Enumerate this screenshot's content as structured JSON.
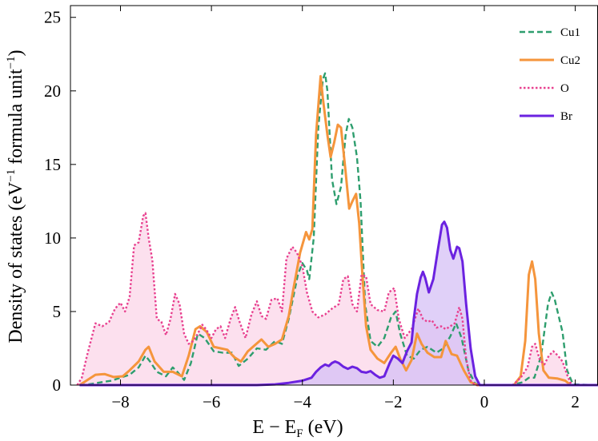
{
  "chart_data": {
    "type": "line",
    "xlabel": "E − E",
    "xlabel_sub": "F",
    "xlabel_unit": " (eV)",
    "ylabel": "Density of states (eV",
    "ylabel_sup": "−1",
    "ylabel_unit": " formula unit",
    "ylabel_unit_sup": "−1",
    "ylabel_close": ")",
    "xlim": [
      -9.1,
      2.5
    ],
    "ylim": [
      0,
      25.8
    ],
    "xticks": [
      -8,
      -6,
      -4,
      -2,
      0,
      2
    ],
    "yticks": [
      0,
      5,
      10,
      15,
      20,
      25
    ],
    "xtick_labels": [
      "−8",
      "−6",
      "−4",
      "−2",
      "0",
      "2"
    ],
    "ytick_labels": [
      "0",
      "5",
      "10",
      "15",
      "20",
      "25"
    ],
    "legend_position": "top-right",
    "series": [
      {
        "name": "Cu1",
        "color": "#2e9e6e",
        "style": "dashed",
        "fill": false,
        "points": [
          [
            -8.9,
            0
          ],
          [
            -8.7,
            0.05
          ],
          [
            -8.5,
            0.15
          ],
          [
            -8.2,
            0.3
          ],
          [
            -8.0,
            0.5
          ],
          [
            -7.8,
            0.7
          ],
          [
            -7.6,
            1.2
          ],
          [
            -7.45,
            2.0
          ],
          [
            -7.35,
            1.6
          ],
          [
            -7.2,
            0.9
          ],
          [
            -7.0,
            0.6
          ],
          [
            -6.85,
            1.2
          ],
          [
            -6.75,
            0.9
          ],
          [
            -6.6,
            0.35
          ],
          [
            -6.45,
            1.5
          ],
          [
            -6.3,
            3.5
          ],
          [
            -6.15,
            3.2
          ],
          [
            -5.95,
            2.3
          ],
          [
            -5.75,
            2.2
          ],
          [
            -5.55,
            2.2
          ],
          [
            -5.4,
            1.3
          ],
          [
            -5.2,
            1.8
          ],
          [
            -5.0,
            2.5
          ],
          [
            -4.8,
            2.4
          ],
          [
            -4.6,
            3.0
          ],
          [
            -4.45,
            2.8
          ],
          [
            -4.3,
            4.5
          ],
          [
            -4.1,
            7.5
          ],
          [
            -4.0,
            8.3
          ],
          [
            -3.9,
            7.8
          ],
          [
            -3.85,
            7.2
          ],
          [
            -3.75,
            10.0
          ],
          [
            -3.65,
            17.5
          ],
          [
            -3.55,
            20.8
          ],
          [
            -3.5,
            21.2
          ],
          [
            -3.45,
            20.0
          ],
          [
            -3.35,
            14.0
          ],
          [
            -3.25,
            12.3
          ],
          [
            -3.15,
            13.5
          ],
          [
            -3.05,
            17.0
          ],
          [
            -2.98,
            18.1
          ],
          [
            -2.9,
            17.5
          ],
          [
            -2.8,
            15.5
          ],
          [
            -2.72,
            12.5
          ],
          [
            -2.62,
            5.5
          ],
          [
            -2.5,
            3.0
          ],
          [
            -2.35,
            2.6
          ],
          [
            -2.2,
            3.2
          ],
          [
            -2.05,
            4.6
          ],
          [
            -1.95,
            5.0
          ],
          [
            -1.85,
            3.5
          ],
          [
            -1.7,
            2.0
          ],
          [
            -1.55,
            1.8
          ],
          [
            -1.4,
            2.4
          ],
          [
            -1.25,
            2.6
          ],
          [
            -1.05,
            2.2
          ],
          [
            -0.9,
            2.5
          ],
          [
            -0.75,
            3.3
          ],
          [
            -0.62,
            4.2
          ],
          [
            -0.5,
            3.2
          ],
          [
            -0.35,
            1.0
          ],
          [
            -0.2,
            0.1
          ],
          [
            -0.05,
            0
          ],
          [
            0.6,
            0
          ],
          [
            0.85,
            0.2
          ],
          [
            0.98,
            0.5
          ],
          [
            1.1,
            0.5
          ],
          [
            1.25,
            2.0
          ],
          [
            1.4,
            5.5
          ],
          [
            1.48,
            6.3
          ],
          [
            1.55,
            5.8
          ],
          [
            1.65,
            4.5
          ],
          [
            1.72,
            3.6
          ],
          [
            1.82,
            1.0
          ],
          [
            1.95,
            0.05
          ],
          [
            2.5,
            0
          ]
        ]
      },
      {
        "name": "Cu2",
        "color": "#f5953c",
        "style": "solid",
        "fill": false,
        "points": [
          [
            -8.9,
            0
          ],
          [
            -8.75,
            0.3
          ],
          [
            -8.55,
            0.7
          ],
          [
            -8.35,
            0.75
          ],
          [
            -8.15,
            0.55
          ],
          [
            -7.95,
            0.6
          ],
          [
            -7.8,
            1.0
          ],
          [
            -7.6,
            1.6
          ],
          [
            -7.45,
            2.4
          ],
          [
            -7.38,
            2.6
          ],
          [
            -7.25,
            1.6
          ],
          [
            -7.05,
            0.9
          ],
          [
            -6.85,
            0.9
          ],
          [
            -6.65,
            0.6
          ],
          [
            -6.5,
            2.0
          ],
          [
            -6.35,
            3.8
          ],
          [
            -6.25,
            4.0
          ],
          [
            -6.1,
            3.6
          ],
          [
            -5.95,
            2.6
          ],
          [
            -5.8,
            2.5
          ],
          [
            -5.65,
            2.4
          ],
          [
            -5.5,
            1.9
          ],
          [
            -5.35,
            1.6
          ],
          [
            -5.2,
            2.3
          ],
          [
            -5.05,
            2.7
          ],
          [
            -4.9,
            3.1
          ],
          [
            -4.75,
            2.6
          ],
          [
            -4.6,
            2.8
          ],
          [
            -4.45,
            3.1
          ],
          [
            -4.3,
            4.7
          ],
          [
            -4.2,
            6.5
          ],
          [
            -4.05,
            9.0
          ],
          [
            -3.92,
            10.4
          ],
          [
            -3.85,
            9.9
          ],
          [
            -3.78,
            10.6
          ],
          [
            -3.7,
            17.0
          ],
          [
            -3.6,
            21.0
          ],
          [
            -3.55,
            19.5
          ],
          [
            -3.45,
            17.0
          ],
          [
            -3.38,
            15.5
          ],
          [
            -3.3,
            16.5
          ],
          [
            -3.22,
            17.7
          ],
          [
            -3.15,
            17.5
          ],
          [
            -3.05,
            14.5
          ],
          [
            -2.97,
            12.0
          ],
          [
            -2.9,
            12.5
          ],
          [
            -2.82,
            13.0
          ],
          [
            -2.75,
            11.0
          ],
          [
            -2.68,
            7.5
          ],
          [
            -2.6,
            4.0
          ],
          [
            -2.5,
            2.4
          ],
          [
            -2.35,
            1.8
          ],
          [
            -2.2,
            1.5
          ],
          [
            -2.05,
            2.2
          ],
          [
            -1.95,
            2.6
          ],
          [
            -1.85,
            1.8
          ],
          [
            -1.72,
            1.0
          ],
          [
            -1.6,
            1.7
          ],
          [
            -1.48,
            3.5
          ],
          [
            -1.38,
            2.8
          ],
          [
            -1.25,
            2.2
          ],
          [
            -1.1,
            1.9
          ],
          [
            -0.95,
            1.9
          ],
          [
            -0.85,
            3.0
          ],
          [
            -0.72,
            2.1
          ],
          [
            -0.6,
            2.0
          ],
          [
            -0.45,
            1.0
          ],
          [
            -0.3,
            0.2
          ],
          [
            -0.15,
            0
          ],
          [
            0.65,
            0
          ],
          [
            0.8,
            0.6
          ],
          [
            0.9,
            3.0
          ],
          [
            0.98,
            7.5
          ],
          [
            1.05,
            8.4
          ],
          [
            1.12,
            7.2
          ],
          [
            1.2,
            3.5
          ],
          [
            1.3,
            1.0
          ],
          [
            1.42,
            0.5
          ],
          [
            1.6,
            0.45
          ],
          [
            1.78,
            0.3
          ],
          [
            1.9,
            0
          ],
          [
            2.5,
            0
          ]
        ]
      },
      {
        "name": "O",
        "color": "#e8408f",
        "style": "dotted",
        "fill": true,
        "fill_color": "#fbd6e8",
        "points": [
          [
            -8.95,
            0
          ],
          [
            -8.85,
            0.5
          ],
          [
            -8.72,
            2.2
          ],
          [
            -8.55,
            4.2
          ],
          [
            -8.4,
            4.0
          ],
          [
            -8.25,
            4.3
          ],
          [
            -8.12,
            5.2
          ],
          [
            -8.0,
            5.6
          ],
          [
            -7.9,
            5.0
          ],
          [
            -7.8,
            6.0
          ],
          [
            -7.7,
            9.5
          ],
          [
            -7.6,
            9.7
          ],
          [
            -7.5,
            11.5
          ],
          [
            -7.45,
            11.7
          ],
          [
            -7.38,
            10.0
          ],
          [
            -7.3,
            8.5
          ],
          [
            -7.2,
            4.5
          ],
          [
            -7.1,
            4.3
          ],
          [
            -7.0,
            3.4
          ],
          [
            -6.9,
            4.5
          ],
          [
            -6.8,
            6.2
          ],
          [
            -6.7,
            5.5
          ],
          [
            -6.6,
            3.5
          ],
          [
            -6.5,
            2.8
          ],
          [
            -6.4,
            3.0
          ],
          [
            -6.3,
            3.5
          ],
          [
            -6.2,
            4.1
          ],
          [
            -6.12,
            3.8
          ],
          [
            -6.0,
            3.2
          ],
          [
            -5.9,
            3.8
          ],
          [
            -5.8,
            4.0
          ],
          [
            -5.7,
            3.2
          ],
          [
            -5.58,
            4.5
          ],
          [
            -5.48,
            5.3
          ],
          [
            -5.38,
            4.3
          ],
          [
            -5.25,
            3.2
          ],
          [
            -5.12,
            4.8
          ],
          [
            -5.0,
            5.7
          ],
          [
            -4.9,
            4.7
          ],
          [
            -4.8,
            4.5
          ],
          [
            -4.68,
            5.8
          ],
          [
            -4.55,
            5.9
          ],
          [
            -4.45,
            5.0
          ],
          [
            -4.35,
            8.6
          ],
          [
            -4.22,
            9.4
          ],
          [
            -4.12,
            9.0
          ],
          [
            -4.0,
            8.1
          ],
          [
            -3.9,
            6.3
          ],
          [
            -3.78,
            5.0
          ],
          [
            -3.65,
            4.6
          ],
          [
            -3.5,
            4.8
          ],
          [
            -3.35,
            5.2
          ],
          [
            -3.2,
            5.5
          ],
          [
            -3.1,
            7.2
          ],
          [
            -3.0,
            7.4
          ],
          [
            -2.9,
            5.5
          ],
          [
            -2.8,
            5.0
          ],
          [
            -2.7,
            7.5
          ],
          [
            -2.6,
            7.4
          ],
          [
            -2.5,
            5.5
          ],
          [
            -2.35,
            5.1
          ],
          [
            -2.2,
            5.0
          ],
          [
            -2.1,
            6.3
          ],
          [
            -1.98,
            6.6
          ],
          [
            -1.88,
            4.5
          ],
          [
            -1.75,
            3.2
          ],
          [
            -1.6,
            3.8
          ],
          [
            -1.45,
            5.2
          ],
          [
            -1.35,
            4.5
          ],
          [
            -1.25,
            4.3
          ],
          [
            -1.15,
            4.4
          ],
          [
            -1.05,
            3.9
          ],
          [
            -0.95,
            4.0
          ],
          [
            -0.85,
            3.8
          ],
          [
            -0.75,
            4.0
          ],
          [
            -0.65,
            4.2
          ],
          [
            -0.55,
            5.3
          ],
          [
            -0.48,
            4.5
          ],
          [
            -0.4,
            1.8
          ],
          [
            -0.3,
            0.3
          ],
          [
            -0.2,
            0
          ],
          [
            0.62,
            0
          ],
          [
            0.8,
            0.5
          ],
          [
            0.95,
            1.2
          ],
          [
            1.05,
            2.6
          ],
          [
            1.12,
            2.8
          ],
          [
            1.22,
            1.7
          ],
          [
            1.32,
            1.4
          ],
          [
            1.42,
            2.0
          ],
          [
            1.52,
            2.3
          ],
          [
            1.62,
            2.0
          ],
          [
            1.72,
            1.6
          ],
          [
            1.82,
            0.7
          ],
          [
            1.92,
            0
          ],
          [
            2.5,
            0
          ]
        ]
      },
      {
        "name": "Br",
        "color": "#6b22e0",
        "style": "solid",
        "fill": true,
        "fill_color": "#d6c0f5",
        "points": [
          [
            -8.9,
            0
          ],
          [
            -5.0,
            0
          ],
          [
            -4.6,
            0.05
          ],
          [
            -4.3,
            0.15
          ],
          [
            -4.0,
            0.3
          ],
          [
            -3.8,
            0.5
          ],
          [
            -3.7,
            0.9
          ],
          [
            -3.6,
            1.2
          ],
          [
            -3.5,
            1.4
          ],
          [
            -3.42,
            1.3
          ],
          [
            -3.35,
            1.5
          ],
          [
            -3.28,
            1.6
          ],
          [
            -3.2,
            1.5
          ],
          [
            -3.1,
            1.25
          ],
          [
            -3.0,
            1.1
          ],
          [
            -2.9,
            1.25
          ],
          [
            -2.8,
            1.15
          ],
          [
            -2.7,
            0.9
          ],
          [
            -2.6,
            0.85
          ],
          [
            -2.5,
            0.95
          ],
          [
            -2.4,
            0.7
          ],
          [
            -2.3,
            0.5
          ],
          [
            -2.2,
            0.6
          ],
          [
            -2.08,
            1.5
          ],
          [
            -2.0,
            2.0
          ],
          [
            -1.9,
            1.8
          ],
          [
            -1.8,
            1.5
          ],
          [
            -1.7,
            2.3
          ],
          [
            -1.6,
            2.9
          ],
          [
            -1.55,
            4.5
          ],
          [
            -1.48,
            6.2
          ],
          [
            -1.4,
            7.3
          ],
          [
            -1.35,
            7.7
          ],
          [
            -1.3,
            7.3
          ],
          [
            -1.22,
            6.3
          ],
          [
            -1.12,
            7.2
          ],
          [
            -1.02,
            9.2
          ],
          [
            -0.93,
            10.9
          ],
          [
            -0.88,
            11.1
          ],
          [
            -0.82,
            10.7
          ],
          [
            -0.75,
            9.2
          ],
          [
            -0.68,
            8.6
          ],
          [
            -0.6,
            9.4
          ],
          [
            -0.55,
            9.3
          ],
          [
            -0.48,
            8.4
          ],
          [
            -0.4,
            5.5
          ],
          [
            -0.3,
            2.5
          ],
          [
            -0.2,
            0.6
          ],
          [
            -0.1,
            0
          ],
          [
            2.5,
            0
          ]
        ]
      }
    ]
  }
}
